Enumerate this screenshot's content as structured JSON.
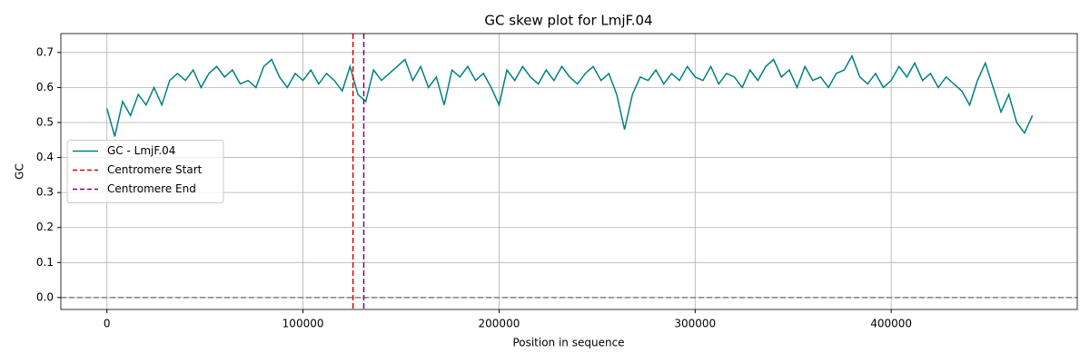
{
  "chart_data": {
    "type": "line",
    "title": "GC skew plot for LmjF.04",
    "xlabel": "Position in sequence",
    "ylabel": "GC",
    "x": [
      0,
      4000,
      8000,
      12000,
      16000,
      20000,
      24000,
      28000,
      32000,
      36000,
      40000,
      44000,
      48000,
      52000,
      56000,
      60000,
      64000,
      68000,
      72000,
      76000,
      80000,
      84000,
      88000,
      92000,
      96000,
      100000,
      104000,
      108000,
      112000,
      116000,
      120000,
      124000,
      128000,
      132000,
      136000,
      140000,
      144000,
      148000,
      152000,
      156000,
      160000,
      164000,
      168000,
      172000,
      176000,
      180000,
      184000,
      188000,
      192000,
      196000,
      200000,
      204000,
      208000,
      212000,
      216000,
      220000,
      224000,
      228000,
      232000,
      236000,
      240000,
      244000,
      248000,
      252000,
      256000,
      260000,
      264000,
      268000,
      272000,
      276000,
      280000,
      284000,
      288000,
      292000,
      296000,
      300000,
      304000,
      308000,
      312000,
      316000,
      320000,
      324000,
      328000,
      332000,
      336000,
      340000,
      344000,
      348000,
      352000,
      356000,
      360000,
      364000,
      368000,
      372000,
      376000,
      380000,
      384000,
      388000,
      392000,
      396000,
      400000,
      404000,
      408000,
      412000,
      416000,
      420000,
      424000,
      428000,
      432000,
      436000,
      440000,
      444000,
      448000,
      452000,
      456000,
      460000,
      464000,
      468000,
      472000
    ],
    "series": [
      {
        "name": "GC - LmjF.04",
        "color": "#008080",
        "values": [
          0.54,
          0.46,
          0.56,
          0.52,
          0.58,
          0.55,
          0.6,
          0.55,
          0.62,
          0.64,
          0.62,
          0.65,
          0.6,
          0.64,
          0.66,
          0.63,
          0.65,
          0.61,
          0.62,
          0.6,
          0.66,
          0.68,
          0.63,
          0.6,
          0.64,
          0.62,
          0.65,
          0.61,
          0.64,
          0.62,
          0.59,
          0.66,
          0.58,
          0.56,
          0.65,
          0.62,
          0.64,
          0.66,
          0.68,
          0.62,
          0.66,
          0.6,
          0.63,
          0.55,
          0.65,
          0.63,
          0.66,
          0.62,
          0.64,
          0.6,
          0.55,
          0.65,
          0.62,
          0.66,
          0.63,
          0.61,
          0.65,
          0.62,
          0.66,
          0.63,
          0.61,
          0.64,
          0.66,
          0.62,
          0.64,
          0.58,
          0.48,
          0.58,
          0.63,
          0.62,
          0.65,
          0.61,
          0.64,
          0.62,
          0.66,
          0.63,
          0.62,
          0.66,
          0.61,
          0.64,
          0.63,
          0.6,
          0.65,
          0.62,
          0.66,
          0.68,
          0.63,
          0.65,
          0.6,
          0.66,
          0.62,
          0.63,
          0.6,
          0.64,
          0.65,
          0.69,
          0.63,
          0.61,
          0.64,
          0.6,
          0.62,
          0.66,
          0.63,
          0.67,
          0.62,
          0.64,
          0.6,
          0.63,
          0.61,
          0.59,
          0.55,
          0.62,
          0.67,
          0.6,
          0.53,
          0.58,
          0.5,
          0.47,
          0.52
        ]
      }
    ],
    "vlines": [
      {
        "name": "Centromere Start",
        "x": 125500,
        "color": "#e00000"
      },
      {
        "name": "Centromere End",
        "x": 131000,
        "color": "#800080"
      }
    ],
    "hline": {
      "y": 0,
      "color": "#808080"
    },
    "xlim": [
      -23500,
      494900
    ],
    "ylim": [
      -0.034,
      0.754
    ],
    "xticks": [
      0,
      100000,
      200000,
      300000,
      400000
    ],
    "yticks": [
      {
        "value": 0,
        "label": "0.0"
      },
      0.1,
      0.2,
      0.3,
      0.4,
      0.5,
      0.6,
      0.7
    ],
    "grid": true,
    "legend": "center left"
  }
}
